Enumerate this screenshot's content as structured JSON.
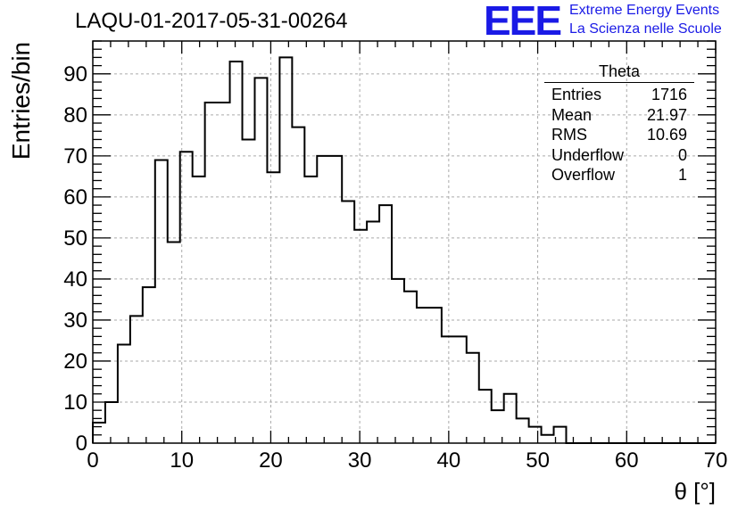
{
  "header": {
    "title": "LAQU-01-2017-05-31-00264",
    "logo_text": "EEE",
    "logo_line1": "Extreme Energy Events",
    "logo_line2": "La Scienza nelle Scuole",
    "logo_color": "#1a1ae6"
  },
  "stats_box": {
    "title": "Theta",
    "rows": [
      {
        "label": "Entries",
        "value": "1716"
      },
      {
        "label": "Mean",
        "value": "21.97"
      },
      {
        "label": "RMS",
        "value": "10.69"
      },
      {
        "label": "Underflow",
        "value": "0"
      },
      {
        "label": "Overflow",
        "value": "1"
      }
    ]
  },
  "chart_data": {
    "type": "histogram",
    "xlabel": "θ [°]",
    "ylabel": "Entries/bin",
    "xlim": [
      0,
      70
    ],
    "ylim": [
      0,
      98
    ],
    "bin_width": 1.4,
    "x_ticks": [
      0,
      10,
      20,
      30,
      40,
      50,
      60,
      70
    ],
    "y_ticks": [
      0,
      10,
      20,
      30,
      40,
      50,
      60,
      70,
      80,
      90
    ],
    "grid": true,
    "values": [
      5,
      10,
      24,
      31,
      38,
      69,
      49,
      71,
      65,
      83,
      83,
      93,
      74,
      89,
      66,
      94,
      77,
      65,
      70,
      70,
      59,
      52,
      54,
      58,
      40,
      37,
      33,
      33,
      26,
      26,
      22,
      13,
      8,
      12,
      6,
      4,
      2,
      4,
      0,
      0,
      0,
      0,
      0,
      0,
      0,
      0,
      0,
      0,
      0,
      0
    ]
  }
}
